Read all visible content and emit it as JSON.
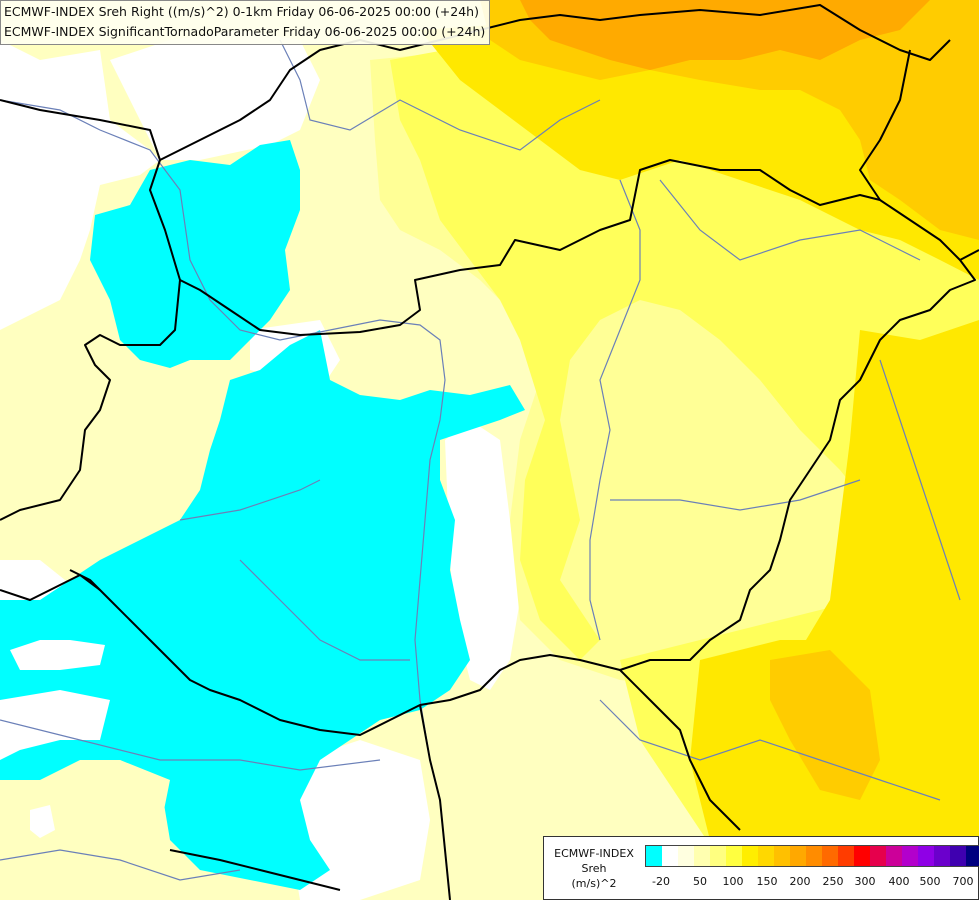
{
  "header": {
    "line1": "ECMWF-INDEX Sreh Right ((m/s)^2) 0-1km Friday 06-06-2025 00:00 (+24h)",
    "line2": "ECMWF-INDEX SignificantTornadoParameter Friday 06-06-2025 00:00 (+24h)"
  },
  "colors": {
    "cyan": "#00ffff",
    "white": "#ffffff",
    "pale_yellow": "#ffffc0",
    "light_yellow": "#ffff96",
    "yellow": "#ffff5a",
    "gold": "#ffe800",
    "orange_yellow": "#ffcc00",
    "orange": "#ffaa00",
    "border": "#000000",
    "river": "#6b80b8"
  },
  "legend": {
    "label_lines": [
      "ECMWF-INDEX",
      "Sreh",
      "(m/s)^2"
    ],
    "swatches": [
      "#00ffff",
      "#ffffff",
      "#ffffe0",
      "#ffffb0",
      "#ffff80",
      "#ffff40",
      "#ffee00",
      "#ffd800",
      "#ffc000",
      "#ffa800",
      "#ff8c00",
      "#ff6a00",
      "#ff3c00",
      "#ff0000",
      "#e6004c",
      "#cc0099",
      "#b300cc",
      "#8f00e6",
      "#6b00cc",
      "#3f00b0",
      "#000080"
    ],
    "ticks": [
      "-20",
      "50",
      "100",
      "150",
      "200",
      "250",
      "300",
      "400",
      "500",
      "700"
    ]
  }
}
